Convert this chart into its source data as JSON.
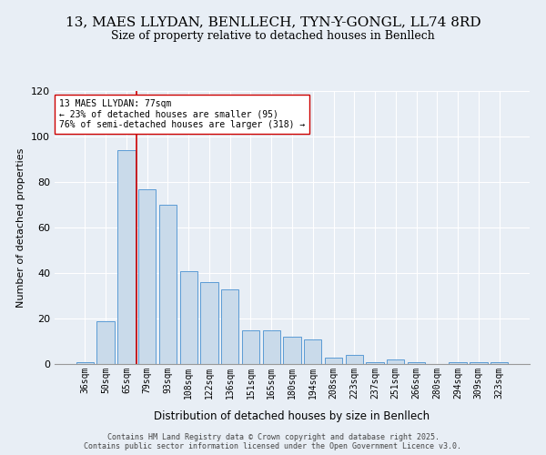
{
  "title": "13, MAES LLYDAN, BENLLECH, TYN-Y-GONGL, LL74 8RD",
  "subtitle": "Size of property relative to detached houses in Benllech",
  "xlabel": "Distribution of detached houses by size in Benllech",
  "ylabel": "Number of detached properties",
  "categories": [
    "36sqm",
    "50sqm",
    "65sqm",
    "79sqm",
    "93sqm",
    "108sqm",
    "122sqm",
    "136sqm",
    "151sqm",
    "165sqm",
    "180sqm",
    "194sqm",
    "208sqm",
    "223sqm",
    "237sqm",
    "251sqm",
    "266sqm",
    "280sqm",
    "294sqm",
    "309sqm",
    "323sqm"
  ],
  "values": [
    1,
    19,
    94,
    77,
    70,
    41,
    36,
    33,
    15,
    15,
    12,
    11,
    3,
    4,
    1,
    2,
    1,
    0,
    1,
    1,
    1
  ],
  "bar_color": "#c9daea",
  "bar_edge_color": "#5b9bd5",
  "vline_x_index": 2.5,
  "vline_color": "#cc0000",
  "annotation_text": "13 MAES LLYDAN: 77sqm\n← 23% of detached houses are smaller (95)\n76% of semi-detached houses are larger (318) →",
  "annotation_box_color": "#ffffff",
  "annotation_box_edge": "#cc0000",
  "ylim": [
    0,
    120
  ],
  "yticks": [
    0,
    20,
    40,
    60,
    80,
    100,
    120
  ],
  "background_color": "#e8eef5",
  "footer_text": "Contains HM Land Registry data © Crown copyright and database right 2025.\nContains public sector information licensed under the Open Government Licence v3.0.",
  "title_fontsize": 11,
  "subtitle_fontsize": 9,
  "annotation_fontsize": 7,
  "ylabel_fontsize": 8,
  "xlabel_fontsize": 8.5,
  "footer_fontsize": 6,
  "tick_fontsize": 7
}
